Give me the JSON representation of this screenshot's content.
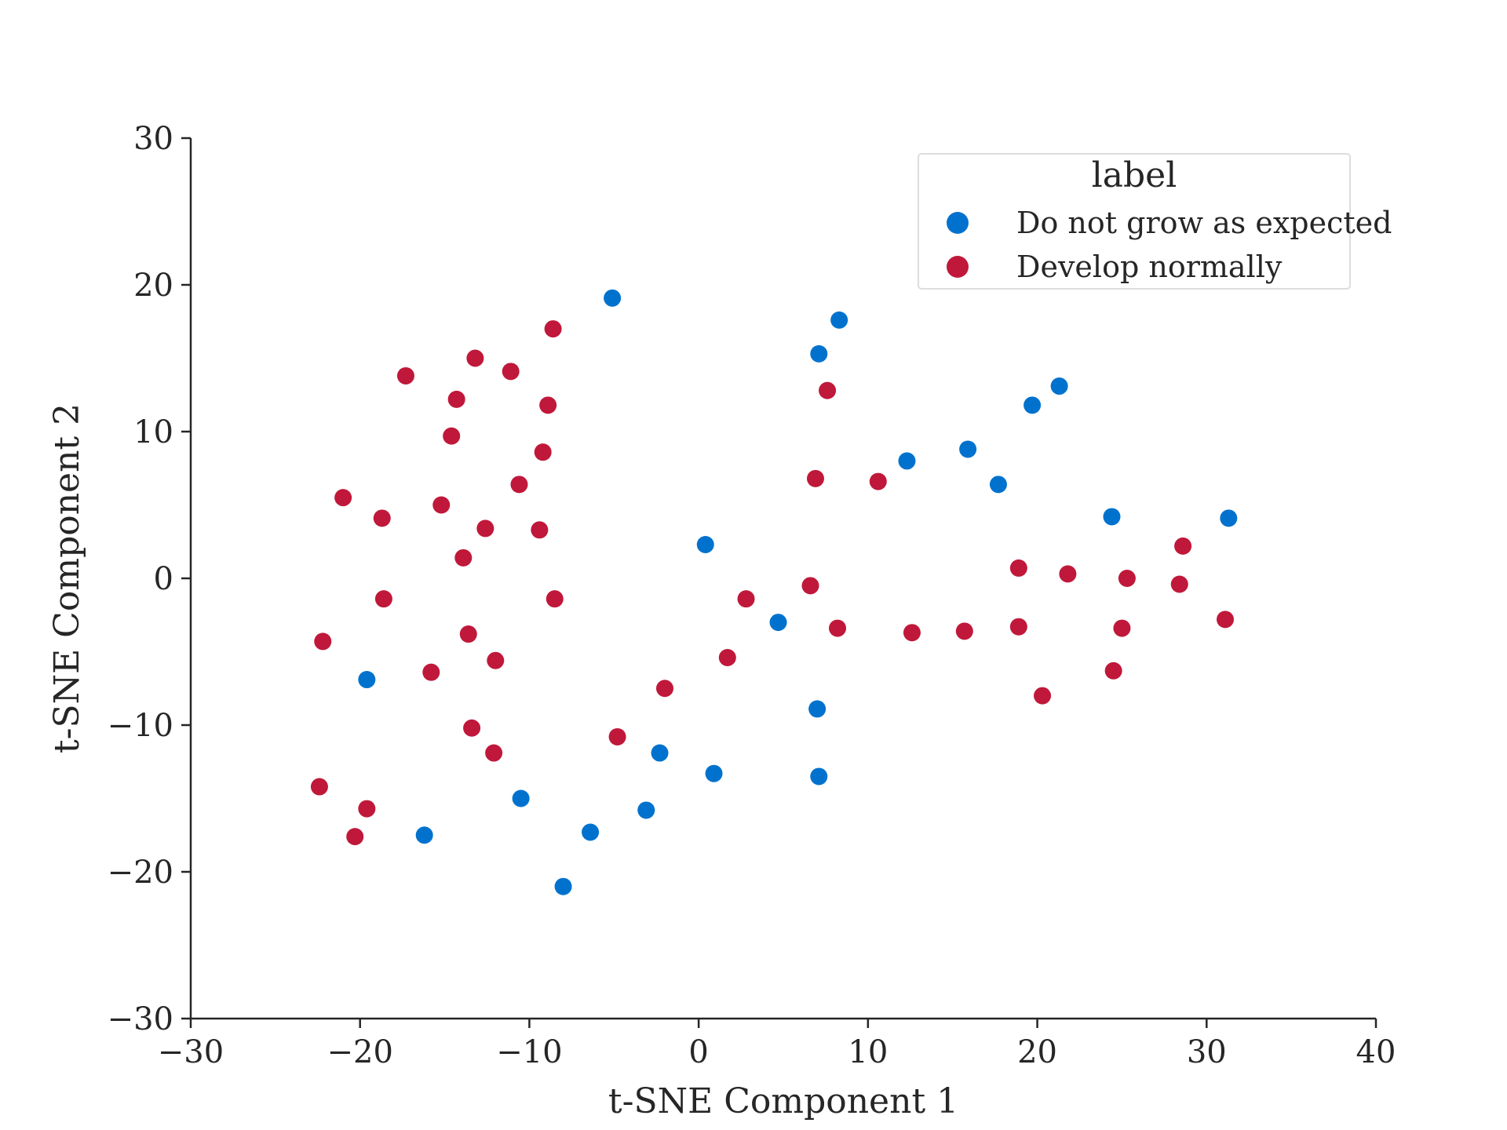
{
  "chart_data": {
    "type": "scatter",
    "title": "",
    "xlabel": "t-SNE Component 1",
    "ylabel": "t-SNE Component 2",
    "xlim": [
      -30,
      40
    ],
    "ylim": [
      -30,
      30
    ],
    "xticks": [
      -30,
      -20,
      -10,
      0,
      10,
      20,
      30,
      40
    ],
    "yticks": [
      -30,
      -20,
      -10,
      0,
      10,
      20,
      30
    ],
    "grid": false,
    "legend": {
      "title": "label",
      "placement": "top-right"
    },
    "series": [
      {
        "name": "Do not grow as expected",
        "color": "#0072CE",
        "points": [
          [
            -5.1,
            19.1
          ],
          [
            8.3,
            17.6
          ],
          [
            7.1,
            15.3
          ],
          [
            21.3,
            13.1
          ],
          [
            19.7,
            11.8
          ],
          [
            12.3,
            8.0
          ],
          [
            15.9,
            8.8
          ],
          [
            17.7,
            6.4
          ],
          [
            24.4,
            4.2
          ],
          [
            31.3,
            4.1
          ],
          [
            0.4,
            2.3
          ],
          [
            4.7,
            -3.0
          ],
          [
            -19.6,
            -6.9
          ],
          [
            7.0,
            -8.9
          ],
          [
            -2.3,
            -11.9
          ],
          [
            0.9,
            -13.3
          ],
          [
            7.1,
            -13.5
          ],
          [
            -10.5,
            -15.0
          ],
          [
            -3.1,
            -15.8
          ],
          [
            -16.2,
            -17.5
          ],
          [
            -6.4,
            -17.3
          ],
          [
            -8.0,
            -21.0
          ]
        ]
      },
      {
        "name": "Develop normally",
        "color": "#C0183A",
        "points": [
          [
            -8.6,
            17.0
          ],
          [
            -13.2,
            15.0
          ],
          [
            -17.3,
            13.8
          ],
          [
            -11.1,
            14.1
          ],
          [
            -14.3,
            12.2
          ],
          [
            -8.9,
            11.8
          ],
          [
            7.6,
            12.8
          ],
          [
            -14.6,
            9.7
          ],
          [
            -9.2,
            8.6
          ],
          [
            -10.6,
            6.4
          ],
          [
            6.9,
            6.8
          ],
          [
            10.6,
            6.6
          ],
          [
            -21.0,
            5.5
          ],
          [
            -15.2,
            5.0
          ],
          [
            -18.7,
            4.1
          ],
          [
            -12.6,
            3.4
          ],
          [
            -9.4,
            3.3
          ],
          [
            -13.9,
            1.4
          ],
          [
            28.6,
            2.2
          ],
          [
            18.9,
            0.7
          ],
          [
            21.8,
            0.3
          ],
          [
            25.3,
            0.0
          ],
          [
            28.4,
            -0.4
          ],
          [
            6.6,
            -0.5
          ],
          [
            -18.6,
            -1.4
          ],
          [
            -8.5,
            -1.4
          ],
          [
            2.8,
            -1.4
          ],
          [
            31.1,
            -2.8
          ],
          [
            8.2,
            -3.4
          ],
          [
            12.6,
            -3.7
          ],
          [
            15.7,
            -3.6
          ],
          [
            18.9,
            -3.3
          ],
          [
            25.0,
            -3.4
          ],
          [
            -13.6,
            -3.8
          ],
          [
            -22.2,
            -4.3
          ],
          [
            -12.0,
            -5.6
          ],
          [
            1.7,
            -5.4
          ],
          [
            -15.8,
            -6.4
          ],
          [
            24.5,
            -6.3
          ],
          [
            -2.0,
            -7.5
          ],
          [
            20.3,
            -8.0
          ],
          [
            -13.4,
            -10.2
          ],
          [
            -4.8,
            -10.8
          ],
          [
            -12.1,
            -11.9
          ],
          [
            -22.4,
            -14.2
          ],
          [
            -19.6,
            -15.7
          ],
          [
            -20.3,
            -17.6
          ]
        ]
      }
    ]
  }
}
